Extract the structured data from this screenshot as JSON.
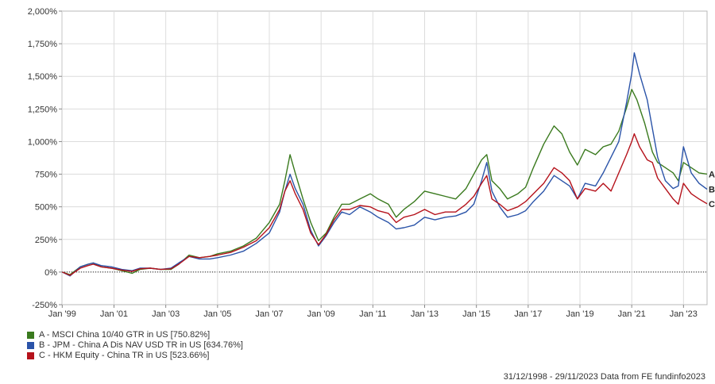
{
  "chart_data": {
    "type": "line",
    "y_ticks": [
      "2,000%",
      "1,750%",
      "1,500%",
      "1,250%",
      "1,000%",
      "750%",
      "500%",
      "250%",
      "0%",
      "-250%"
    ],
    "y_tick_values": [
      2000,
      1750,
      1500,
      1250,
      1000,
      750,
      500,
      250,
      0,
      -250
    ],
    "x_ticks": [
      "Jan '99",
      "Jan '01",
      "Jan '03",
      "Jan '05",
      "Jan '07",
      "Jan '09",
      "Jan '11",
      "Jan '13",
      "Jan '15",
      "Jan '17",
      "Jan '19",
      "Jan '21",
      "Jan '23"
    ],
    "x_tick_values": [
      1999.0,
      2001.0,
      2003.0,
      2005.0,
      2007.0,
      2009.0,
      2011.0,
      2013.0,
      2015.0,
      2017.0,
      2019.0,
      2021.0,
      2023.0
    ],
    "xlim": [
      1998.99,
      2023.91
    ],
    "ylim": [
      -250,
      2000
    ],
    "grid": true,
    "zero_line": "dotted",
    "series": [
      {
        "name": "A - MSCI China 10/40 GTR in US [750.82%]",
        "end_label": "A",
        "color": "#3a7a1e",
        "points": [
          [
            1999.0,
            0
          ],
          [
            1999.3,
            -20
          ],
          [
            1999.7,
            40
          ],
          [
            2000.0,
            60
          ],
          [
            2000.2,
            70
          ],
          [
            2000.5,
            40
          ],
          [
            2000.9,
            30
          ],
          [
            2001.3,
            10
          ],
          [
            2001.7,
            -10
          ],
          [
            2002.0,
            20
          ],
          [
            2002.4,
            30
          ],
          [
            2002.8,
            20
          ],
          [
            2003.2,
            20
          ],
          [
            2003.5,
            60
          ],
          [
            2003.9,
            130
          ],
          [
            2004.3,
            110
          ],
          [
            2004.7,
            120
          ],
          [
            2005.0,
            140
          ],
          [
            2005.5,
            160
          ],
          [
            2006.0,
            200
          ],
          [
            2006.5,
            260
          ],
          [
            2007.0,
            380
          ],
          [
            2007.4,
            520
          ],
          [
            2007.6,
            700
          ],
          [
            2007.8,
            900
          ],
          [
            2008.0,
            760
          ],
          [
            2008.3,
            560
          ],
          [
            2008.6,
            380
          ],
          [
            2008.9,
            240
          ],
          [
            2009.2,
            300
          ],
          [
            2009.5,
            420
          ],
          [
            2009.8,
            520
          ],
          [
            2010.1,
            520
          ],
          [
            2010.5,
            560
          ],
          [
            2010.9,
            600
          ],
          [
            2011.2,
            560
          ],
          [
            2011.6,
            520
          ],
          [
            2011.9,
            420
          ],
          [
            2012.2,
            480
          ],
          [
            2012.6,
            540
          ],
          [
            2013.0,
            620
          ],
          [
            2013.4,
            600
          ],
          [
            2013.8,
            580
          ],
          [
            2014.2,
            560
          ],
          [
            2014.6,
            640
          ],
          [
            2014.9,
            750
          ],
          [
            2015.2,
            860
          ],
          [
            2015.4,
            900
          ],
          [
            2015.6,
            700
          ],
          [
            2015.9,
            640
          ],
          [
            2016.2,
            560
          ],
          [
            2016.6,
            600
          ],
          [
            2016.9,
            650
          ],
          [
            2017.2,
            800
          ],
          [
            2017.6,
            980
          ],
          [
            2018.0,
            1120
          ],
          [
            2018.3,
            1060
          ],
          [
            2018.6,
            920
          ],
          [
            2018.9,
            820
          ],
          [
            2019.2,
            940
          ],
          [
            2019.6,
            900
          ],
          [
            2019.9,
            960
          ],
          [
            2020.2,
            980
          ],
          [
            2020.5,
            1080
          ],
          [
            2020.8,
            1260
          ],
          [
            2021.0,
            1400
          ],
          [
            2021.2,
            1320
          ],
          [
            2021.5,
            1140
          ],
          [
            2021.8,
            920
          ],
          [
            2022.0,
            840
          ],
          [
            2022.3,
            800
          ],
          [
            2022.6,
            760
          ],
          [
            2022.8,
            700
          ],
          [
            2023.0,
            840
          ],
          [
            2023.3,
            800
          ],
          [
            2023.6,
            760
          ],
          [
            2023.91,
            750.82
          ]
        ]
      },
      {
        "name": "B - JPM - China A Dis NAV USD TR in US [634.76%]",
        "end_label": "B",
        "color": "#2a53a8",
        "points": [
          [
            1999.0,
            0
          ],
          [
            1999.3,
            -30
          ],
          [
            1999.7,
            40
          ],
          [
            2000.0,
            60
          ],
          [
            2000.2,
            70
          ],
          [
            2000.5,
            50
          ],
          [
            2000.9,
            40
          ],
          [
            2001.3,
            20
          ],
          [
            2001.7,
            10
          ],
          [
            2002.0,
            30
          ],
          [
            2002.4,
            30
          ],
          [
            2002.8,
            20
          ],
          [
            2003.2,
            30
          ],
          [
            2003.5,
            70
          ],
          [
            2003.9,
            120
          ],
          [
            2004.3,
            100
          ],
          [
            2004.7,
            100
          ],
          [
            2005.0,
            110
          ],
          [
            2005.5,
            130
          ],
          [
            2006.0,
            160
          ],
          [
            2006.5,
            220
          ],
          [
            2007.0,
            300
          ],
          [
            2007.4,
            460
          ],
          [
            2007.6,
            620
          ],
          [
            2007.8,
            750
          ],
          [
            2008.0,
            640
          ],
          [
            2008.3,
            520
          ],
          [
            2008.6,
            320
          ],
          [
            2008.9,
            200
          ],
          [
            2009.2,
            280
          ],
          [
            2009.5,
            380
          ],
          [
            2009.8,
            460
          ],
          [
            2010.1,
            440
          ],
          [
            2010.5,
            500
          ],
          [
            2010.9,
            460
          ],
          [
            2011.2,
            420
          ],
          [
            2011.6,
            380
          ],
          [
            2011.9,
            330
          ],
          [
            2012.2,
            340
          ],
          [
            2012.6,
            360
          ],
          [
            2013.0,
            420
          ],
          [
            2013.4,
            400
          ],
          [
            2013.8,
            420
          ],
          [
            2014.2,
            430
          ],
          [
            2014.6,
            460
          ],
          [
            2014.9,
            520
          ],
          [
            2015.2,
            700
          ],
          [
            2015.4,
            840
          ],
          [
            2015.6,
            620
          ],
          [
            2015.9,
            500
          ],
          [
            2016.2,
            420
          ],
          [
            2016.6,
            440
          ],
          [
            2016.9,
            470
          ],
          [
            2017.2,
            540
          ],
          [
            2017.6,
            620
          ],
          [
            2018.0,
            740
          ],
          [
            2018.3,
            700
          ],
          [
            2018.6,
            660
          ],
          [
            2018.9,
            560
          ],
          [
            2019.2,
            680
          ],
          [
            2019.6,
            660
          ],
          [
            2019.9,
            760
          ],
          [
            2020.2,
            880
          ],
          [
            2020.5,
            1000
          ],
          [
            2020.8,
            1300
          ],
          [
            2021.0,
            1520
          ],
          [
            2021.1,
            1680
          ],
          [
            2021.3,
            1520
          ],
          [
            2021.6,
            1320
          ],
          [
            2021.8,
            1100
          ],
          [
            2022.0,
            880
          ],
          [
            2022.3,
            700
          ],
          [
            2022.6,
            640
          ],
          [
            2022.8,
            660
          ],
          [
            2023.0,
            960
          ],
          [
            2023.3,
            760
          ],
          [
            2023.6,
            680
          ],
          [
            2023.91,
            634.76
          ]
        ]
      },
      {
        "name": "C - HKM Equity - China TR in US [523.66%]",
        "end_label": "C",
        "color": "#b5121b",
        "points": [
          [
            1999.0,
            0
          ],
          [
            1999.3,
            -25
          ],
          [
            1999.7,
            30
          ],
          [
            2000.0,
            50
          ],
          [
            2000.2,
            60
          ],
          [
            2000.5,
            40
          ],
          [
            2000.9,
            30
          ],
          [
            2001.3,
            15
          ],
          [
            2001.7,
            5
          ],
          [
            2002.0,
            25
          ],
          [
            2002.4,
            30
          ],
          [
            2002.8,
            20
          ],
          [
            2003.2,
            25
          ],
          [
            2003.5,
            60
          ],
          [
            2003.9,
            120
          ],
          [
            2004.3,
            110
          ],
          [
            2004.7,
            120
          ],
          [
            2005.0,
            130
          ],
          [
            2005.5,
            150
          ],
          [
            2006.0,
            190
          ],
          [
            2006.5,
            240
          ],
          [
            2007.0,
            340
          ],
          [
            2007.4,
            480
          ],
          [
            2007.6,
            620
          ],
          [
            2007.8,
            700
          ],
          [
            2008.0,
            600
          ],
          [
            2008.3,
            480
          ],
          [
            2008.6,
            300
          ],
          [
            2008.9,
            210
          ],
          [
            2009.2,
            290
          ],
          [
            2009.5,
            400
          ],
          [
            2009.8,
            480
          ],
          [
            2010.1,
            480
          ],
          [
            2010.5,
            510
          ],
          [
            2010.9,
            500
          ],
          [
            2011.2,
            470
          ],
          [
            2011.6,
            450
          ],
          [
            2011.9,
            380
          ],
          [
            2012.2,
            420
          ],
          [
            2012.6,
            440
          ],
          [
            2013.0,
            480
          ],
          [
            2013.4,
            440
          ],
          [
            2013.8,
            460
          ],
          [
            2014.2,
            460
          ],
          [
            2014.6,
            520
          ],
          [
            2014.9,
            580
          ],
          [
            2015.2,
            680
          ],
          [
            2015.4,
            740
          ],
          [
            2015.6,
            560
          ],
          [
            2015.9,
            520
          ],
          [
            2016.2,
            470
          ],
          [
            2016.6,
            500
          ],
          [
            2016.9,
            540
          ],
          [
            2017.2,
            600
          ],
          [
            2017.6,
            680
          ],
          [
            2018.0,
            800
          ],
          [
            2018.3,
            760
          ],
          [
            2018.6,
            700
          ],
          [
            2018.9,
            560
          ],
          [
            2019.2,
            640
          ],
          [
            2019.6,
            620
          ],
          [
            2019.9,
            680
          ],
          [
            2020.2,
            620
          ],
          [
            2020.5,
            760
          ],
          [
            2020.8,
            900
          ],
          [
            2021.0,
            1000
          ],
          [
            2021.1,
            1060
          ],
          [
            2021.3,
            960
          ],
          [
            2021.6,
            860
          ],
          [
            2021.8,
            840
          ],
          [
            2022.0,
            720
          ],
          [
            2022.3,
            640
          ],
          [
            2022.6,
            560
          ],
          [
            2022.8,
            520
          ],
          [
            2023.0,
            680
          ],
          [
            2023.3,
            600
          ],
          [
            2023.6,
            560
          ],
          [
            2023.91,
            523.66
          ]
        ]
      }
    ]
  },
  "footer": "31/12/1998 - 29/11/2023 Data from FE fundinfo2023"
}
